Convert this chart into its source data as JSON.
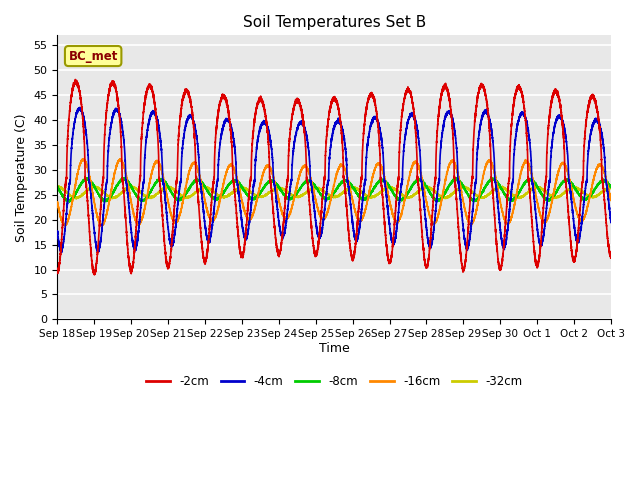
{
  "title": "Soil Temperatures Set B",
  "xlabel": "Time",
  "ylabel": "Soil Temperature (C)",
  "annotation": "BC_met",
  "ylim": [
    0,
    57
  ],
  "yticks": [
    0,
    5,
    10,
    15,
    20,
    25,
    30,
    35,
    40,
    45,
    50,
    55
  ],
  "n_days": 15,
  "x_tick_labels": [
    "Sep 18",
    "Sep 19",
    "Sep 20",
    "Sep 21",
    "Sep 22",
    "Sep 23",
    "Sep 24",
    "Sep 25",
    "Sep 26",
    "Sep 27",
    "Sep 28",
    "Sep 29",
    "Sep 30",
    "Oct 1",
    "Oct 2",
    "Oct 3"
  ],
  "fig_bg": "#ffffff",
  "plot_bg": "#e8e8e8",
  "grid_color": "#ffffff",
  "legend_colors": [
    "#dd0000",
    "#0000cc",
    "#00cc00",
    "#ff8800",
    "#cccc00"
  ],
  "legend_labels": [
    "-2cm",
    "-4cm",
    "-8cm",
    "-16cm",
    "-32cm"
  ],
  "linewidth": 1.2,
  "annotation_fg": "#8b0000",
  "annotation_bg": "#ffff99",
  "annotation_edge": "#999900"
}
